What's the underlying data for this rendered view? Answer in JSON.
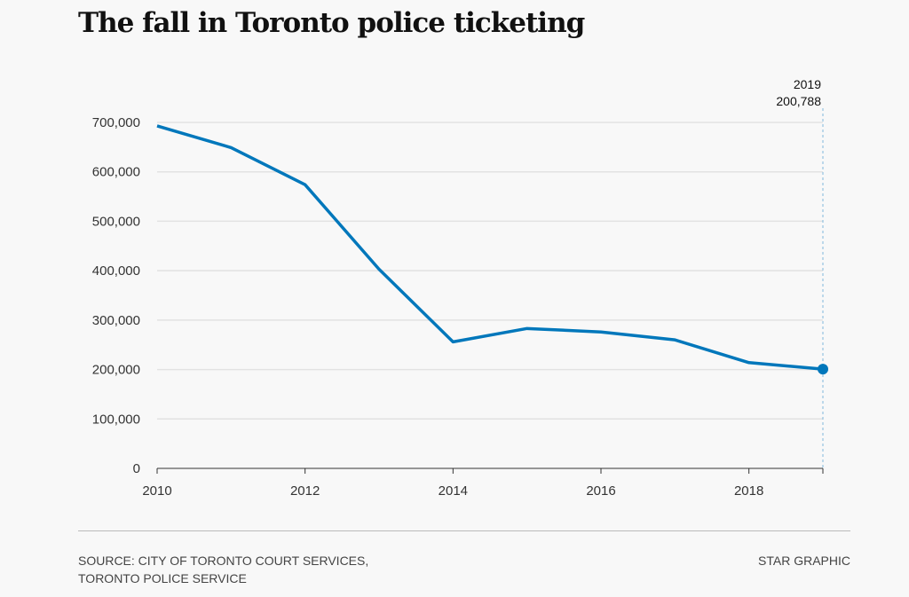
{
  "title": "The fall in Toronto police ticketing",
  "chart_data": {
    "type": "line",
    "title": "The fall in Toronto police ticketing",
    "x": [
      2010,
      2011,
      2012,
      2013,
      2014,
      2015,
      2016,
      2017,
      2018,
      2019
    ],
    "values": [
      693000,
      649000,
      574000,
      403000,
      256000,
      283000,
      276000,
      260000,
      214000,
      200788
    ],
    "xlim": [
      2010,
      2019
    ],
    "ylim": [
      0,
      700000
    ],
    "xticks": [
      "2010",
      "2012",
      "2014",
      "2016",
      "2018"
    ],
    "yticks": [
      "0",
      "100,000",
      "200,000",
      "300,000",
      "400,000",
      "500,000",
      "600,000",
      "700,000"
    ],
    "grid": true,
    "line_color": "#0077bb",
    "annotation": {
      "year": "2019",
      "value": "200,788"
    }
  },
  "footer": {
    "source_line1": "SOURCE: CITY OF TORONTO COURT SERVICES,",
    "source_line2": "TORONTO POLICE SERVICE",
    "credit": "STAR GRAPHIC"
  }
}
